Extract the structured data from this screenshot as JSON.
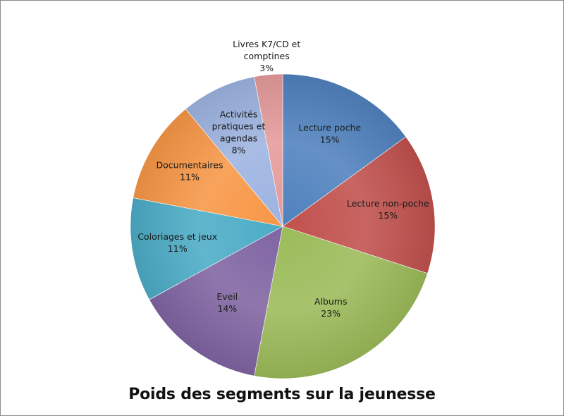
{
  "chart_data": {
    "type": "pie",
    "title": "Poids des segments sur la jeunesse",
    "start_angle_deg": 0,
    "direction": "clockwise",
    "slices": [
      {
        "name": "Lecture poche",
        "value": 15,
        "label_lines": [
          "Lecture poche",
          "15%"
        ],
        "color": "#4f81bd"
      },
      {
        "name": "Lecture non-poche",
        "value": 15,
        "label_lines": [
          "Lecture non-poche",
          "15%"
        ],
        "color": "#c0504d"
      },
      {
        "name": "Albums",
        "value": 23,
        "label_lines": [
          "Albums",
          "23%"
        ],
        "color": "#9bbb59"
      },
      {
        "name": "Eveil",
        "value": 14,
        "label_lines": [
          "Eveil",
          "14%"
        ],
        "color": "#8064a2"
      },
      {
        "name": "Coloriages et jeux",
        "value": 11,
        "label_lines": [
          "Coloriages et jeux",
          "11%"
        ],
        "color": "#4bacc6"
      },
      {
        "name": "Documentaires",
        "value": 11,
        "label_lines": [
          "Documentaires",
          "11%"
        ],
        "color": "#f79646"
      },
      {
        "name": "Activités pratiques et agendas",
        "value": 8,
        "label_lines": [
          "Activités",
          "pratiques et",
          "agendas",
          "8%"
        ],
        "color": "#9cb3e0"
      },
      {
        "name": "Livres K7/CD et comptines",
        "value": 3,
        "label_lines": [
          "Livres K7/CD et",
          "comptines",
          "3%"
        ],
        "color": "#e59a9a"
      }
    ]
  }
}
